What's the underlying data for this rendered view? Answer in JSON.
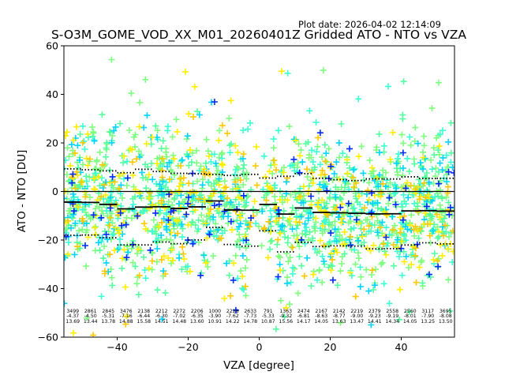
{
  "chart_data": {
    "type": "scatter",
    "title": "S-O3M_GOME_VOD_XX_M01_20260401Z Gridded ATO - NTO vs VZA",
    "plot_date": "Plot date: 2026-04-02 12:14:09",
    "xlabel": "VZA [degree]",
    "ylabel": "ATO - NTO [DU]",
    "xlim": [
      -55,
      55
    ],
    "ylim": [
      -60,
      60
    ],
    "xticks": [
      -40,
      -20,
      0,
      20,
      40
    ],
    "yticks": [
      -60,
      -40,
      -20,
      0,
      20,
      40,
      60
    ],
    "marker": "+",
    "scatter_colors": [
      "#7fff7f",
      "#55ffa0",
      "#3cffd2",
      "#00d4ff",
      "#ffee00",
      "#ffc800",
      "#0028ff"
    ],
    "zero_line": 0,
    "bins": [
      {
        "count": "3499",
        "mean": -4.37,
        "std": 13.69
      },
      {
        "count": "2861",
        "mean": -4.5,
        "std": 13.44
      },
      {
        "count": "2845",
        "mean": -5.31,
        "std": 13.78
      },
      {
        "count": "3476",
        "mean": -7.16,
        "std": 14.88
      },
      {
        "count": "2138",
        "mean": -6.44,
        "std": 15.58
      },
      {
        "count": "2212",
        "mean": -6.3,
        "std": 14.51
      },
      {
        "count": "2272",
        "mean": -7.02,
        "std": 14.48
      },
      {
        "count": "2206",
        "mean": -6.35,
        "std": 13.6
      },
      {
        "count": "1000",
        "mean": -3.9,
        "std": 10.91
      },
      {
        "count": "2228",
        "mean": -7.62,
        "std": 14.22
      },
      {
        "count": "2633",
        "mean": -7.73,
        "std": 14.78
      },
      {
        "count": "791",
        "mean": -5.33,
        "std": 10.87
      },
      {
        "count": "1363",
        "mean": -9.32,
        "std": 15.56
      },
      {
        "count": "2474",
        "mean": -6.81,
        "std": 14.17
      },
      {
        "count": "2167",
        "mean": -8.63,
        "std": 14.05
      },
      {
        "count": "2142",
        "mean": -8.77,
        "std": 13.63
      },
      {
        "count": "2219",
        "mean": -9.0,
        "std": 13.47
      },
      {
        "count": "2379",
        "mean": -9.23,
        "std": 14.41
      },
      {
        "count": "2558",
        "mean": -9.19,
        "std": 14.34
      },
      {
        "count": "2560",
        "mean": -8.01,
        "std": 14.05
      },
      {
        "count": "3117",
        "mean": -7.9,
        "std": 13.25
      },
      {
        "count": "3695",
        "mean": -8.08,
        "std": 13.5
      }
    ]
  }
}
